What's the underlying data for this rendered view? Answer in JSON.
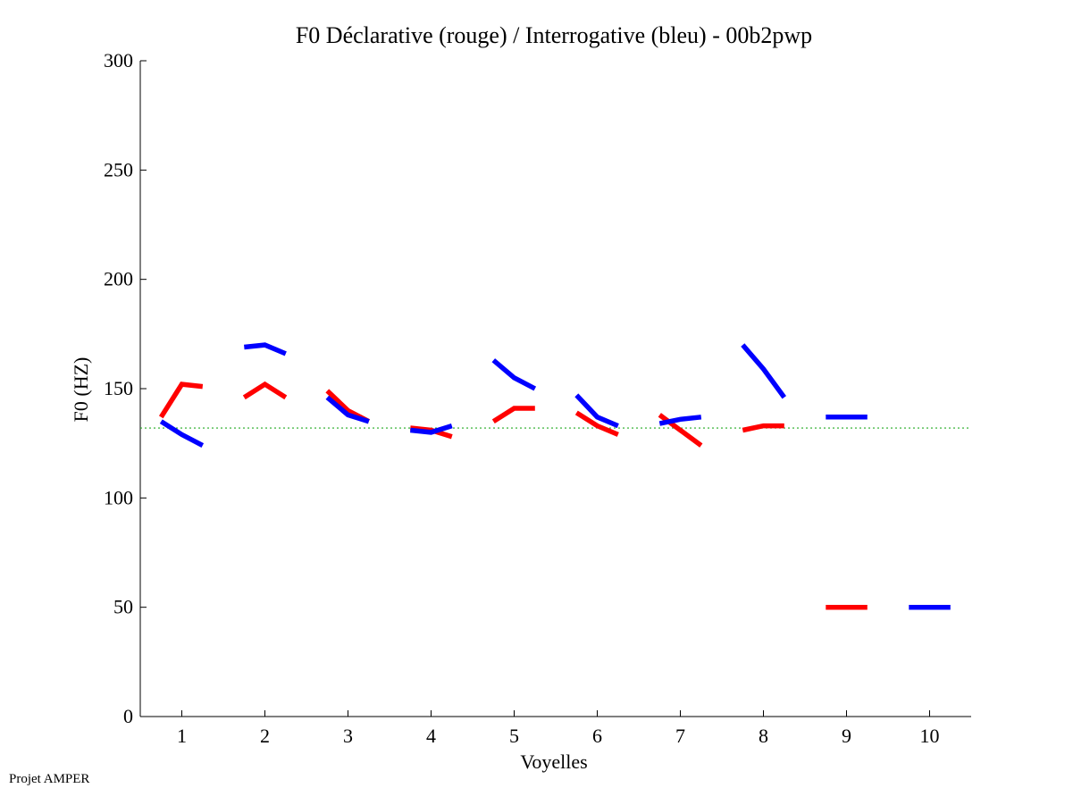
{
  "footer": "Projet AMPER",
  "chart_data": {
    "type": "line",
    "title": "F0 Déclarative (rouge) / Interrogative (bleu) - 00b2pwp",
    "xlabel": "Voyelles",
    "ylabel": "F0 (HZ)",
    "xlim": [
      0.5,
      10.5
    ],
    "ylim": [
      0,
      300
    ],
    "xticks": [
      1,
      2,
      3,
      4,
      5,
      6,
      7,
      8,
      9,
      10
    ],
    "yticks": [
      0,
      50,
      100,
      150,
      200,
      250,
      300
    ],
    "reference_line": {
      "y": 132,
      "color": "#22aa22",
      "style": "dotted"
    },
    "series": [
      {
        "name": "Déclarative",
        "color": "#ff0000",
        "segments": [
          {
            "x": [
              0.75,
              1.0,
              1.25
            ],
            "y": [
              137,
              152,
              151
            ]
          },
          {
            "x": [
              1.75,
              2.0,
              2.25
            ],
            "y": [
              146,
              152,
              146
            ]
          },
          {
            "x": [
              2.75,
              3.0,
              3.25
            ],
            "y": [
              149,
              140,
              135
            ]
          },
          {
            "x": [
              3.75,
              4.0,
              4.25
            ],
            "y": [
              132,
              131,
              128
            ]
          },
          {
            "x": [
              4.75,
              5.0,
              5.25
            ],
            "y": [
              135,
              141,
              141
            ]
          },
          {
            "x": [
              5.75,
              6.0,
              6.25
            ],
            "y": [
              139,
              133,
              129
            ]
          },
          {
            "x": [
              6.75,
              7.0,
              7.25
            ],
            "y": [
              138,
              131,
              124
            ]
          },
          {
            "x": [
              7.75,
              8.0,
              8.25
            ],
            "y": [
              131,
              133,
              133
            ]
          },
          {
            "x": [
              8.75,
              9.25
            ],
            "y": [
              50,
              50
            ]
          }
        ]
      },
      {
        "name": "Interrogative",
        "color": "#0000ff",
        "segments": [
          {
            "x": [
              0.75,
              1.0,
              1.25
            ],
            "y": [
              135,
              129,
              124
            ]
          },
          {
            "x": [
              1.75,
              2.0,
              2.25
            ],
            "y": [
              169,
              170,
              166
            ]
          },
          {
            "x": [
              2.75,
              3.0,
              3.25
            ],
            "y": [
              146,
              138,
              135
            ]
          },
          {
            "x": [
              3.75,
              4.0,
              4.25
            ],
            "y": [
              131,
              130,
              133
            ]
          },
          {
            "x": [
              4.75,
              5.0,
              5.25
            ],
            "y": [
              163,
              155,
              150
            ]
          },
          {
            "x": [
              5.75,
              6.0,
              6.25
            ],
            "y": [
              147,
              137,
              133
            ]
          },
          {
            "x": [
              6.75,
              7.0,
              7.25
            ],
            "y": [
              134,
              136,
              137
            ]
          },
          {
            "x": [
              7.75,
              8.0,
              8.25
            ],
            "y": [
              170,
              159,
              146
            ]
          },
          {
            "x": [
              8.75,
              9.25
            ],
            "y": [
              137,
              137
            ]
          },
          {
            "x": [
              9.75,
              10.25
            ],
            "y": [
              50,
              50
            ]
          }
        ]
      }
    ]
  }
}
